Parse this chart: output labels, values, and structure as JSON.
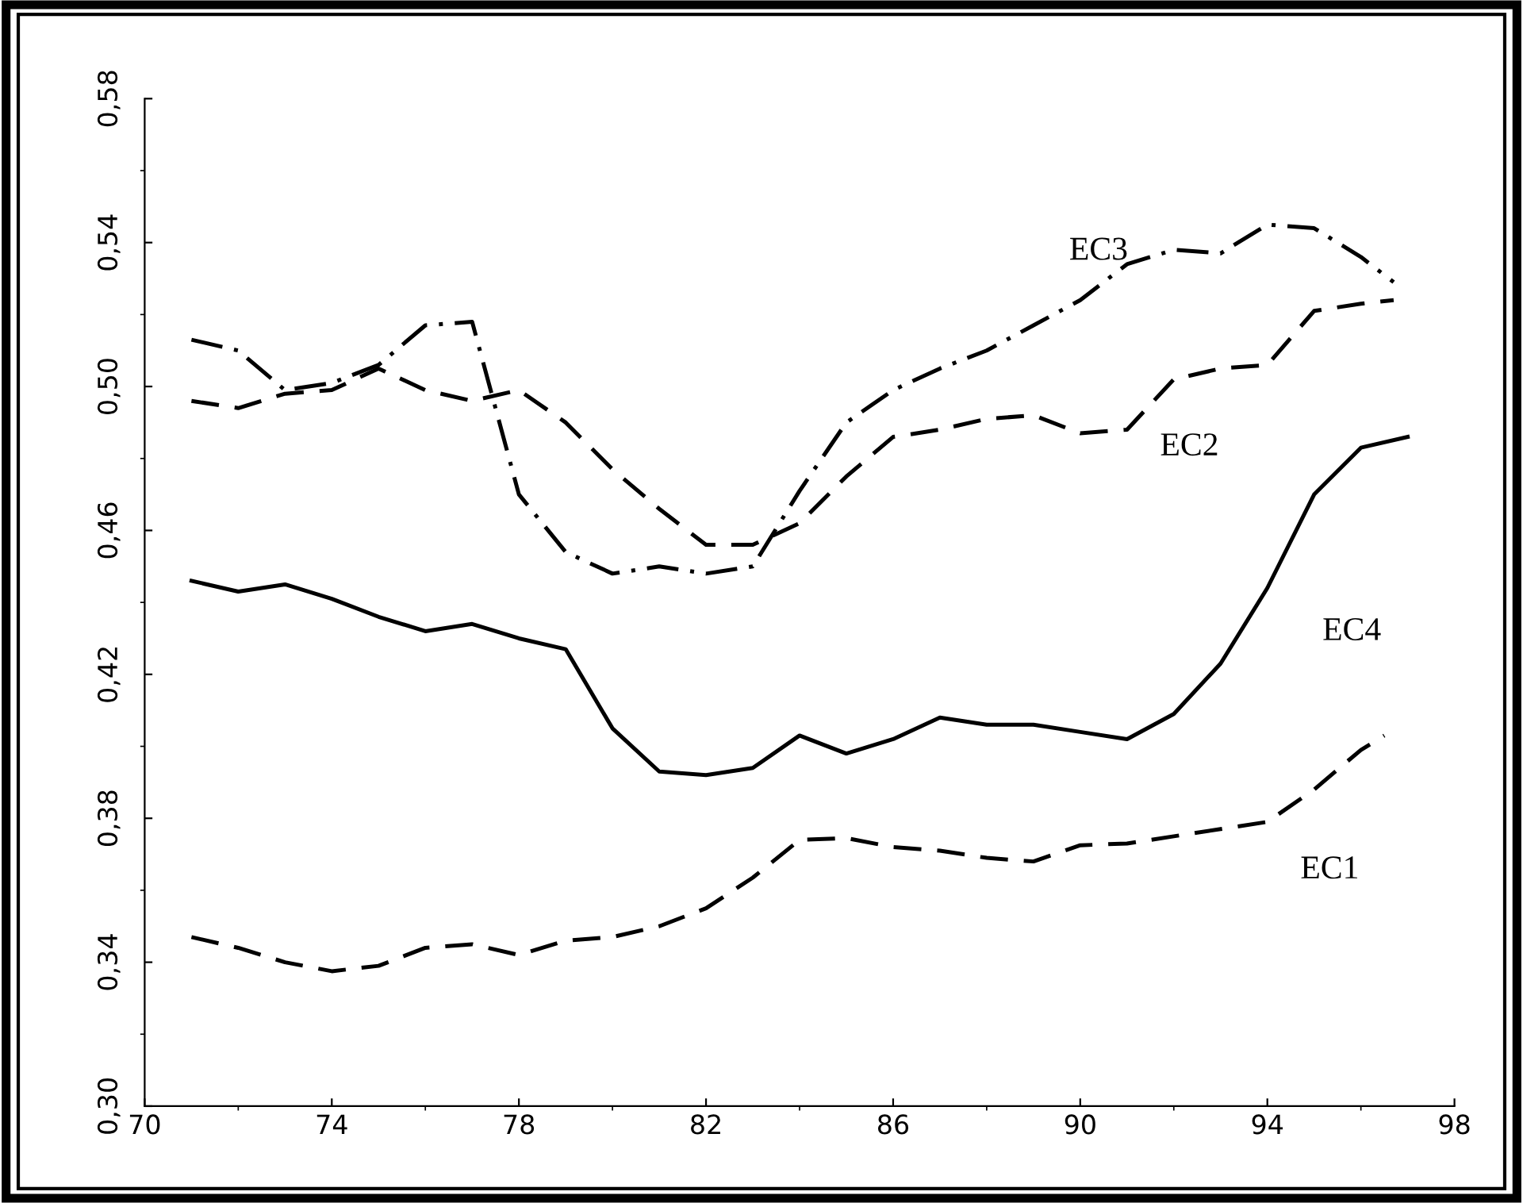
{
  "chart_data": {
    "type": "line",
    "xlim": [
      70,
      98
    ],
    "xticks": [
      70,
      74,
      78,
      82,
      86,
      90,
      94,
      98
    ],
    "ylim": [
      0.3,
      0.58
    ],
    "yticks": [
      {
        "value": 0.3,
        "label": "0,30"
      },
      {
        "value": 0.34,
        "label": "0,34"
      },
      {
        "value": 0.38,
        "label": "0,38"
      },
      {
        "value": 0.42,
        "label": "0,42"
      },
      {
        "value": 0.46,
        "label": "0,46"
      },
      {
        "value": 0.5,
        "label": "0,50"
      },
      {
        "value": 0.54,
        "label": "0,54"
      },
      {
        "value": 0.58,
        "label": "0,58"
      }
    ],
    "grid": false,
    "marker": "none",
    "series": [
      {
        "name": "EC1",
        "color": "#000000",
        "line_style": "dashed",
        "x": [
          71,
          72,
          73,
          74,
          75,
          76,
          77,
          78,
          79,
          80,
          81,
          82,
          83,
          84,
          85,
          86,
          87,
          88,
          89,
          90,
          91,
          92,
          93,
          94,
          95,
          96,
          96.5
        ],
        "values": [
          0.347,
          0.344,
          0.34,
          0.3375,
          0.339,
          0.344,
          0.345,
          0.342,
          0.346,
          0.347,
          0.35,
          0.355,
          0.3635,
          0.374,
          0.3745,
          0.372,
          0.371,
          0.369,
          0.368,
          0.3725,
          0.373,
          0.375,
          0.377,
          0.379,
          0.388,
          0.399,
          0.403
        ]
      },
      {
        "name": "EC2",
        "color": "#000000",
        "line_style": "dashed",
        "x": [
          71,
          72,
          73,
          74,
          75,
          76,
          77,
          78,
          79,
          80,
          81,
          82,
          83,
          84,
          85,
          86,
          87,
          88,
          89,
          90,
          91,
          92,
          93,
          94,
          95,
          96,
          96.7
        ],
        "values": [
          0.496,
          0.494,
          0.498,
          0.499,
          0.505,
          0.499,
          0.496,
          0.499,
          0.49,
          0.477,
          0.466,
          0.456,
          0.456,
          0.462,
          0.475,
          0.486,
          0.488,
          0.491,
          0.492,
          0.487,
          0.488,
          0.502,
          0.505,
          0.506,
          0.521,
          0.523,
          0.524
        ]
      },
      {
        "name": "EC3",
        "color": "#000000",
        "line_style": "dashdot",
        "x": [
          71,
          72,
          73,
          74,
          75,
          76,
          77,
          78,
          79,
          80,
          81,
          82,
          83,
          84,
          85,
          86,
          87,
          88,
          89,
          90,
          91,
          92,
          93,
          94,
          95,
          96,
          96.7
        ],
        "values": [
          0.513,
          0.51,
          0.499,
          0.501,
          0.506,
          0.517,
          0.518,
          0.47,
          0.454,
          0.448,
          0.45,
          0.448,
          0.45,
          0.471,
          0.49,
          0.499,
          0.505,
          0.51,
          0.517,
          0.524,
          0.534,
          0.538,
          0.537,
          0.545,
          0.544,
          0.536,
          0.529
        ]
      },
      {
        "name": "EC4",
        "color": "#000000",
        "line_style": "solid",
        "x": [
          71,
          72,
          73,
          74,
          75,
          76,
          77,
          78,
          79,
          80,
          81,
          82,
          83,
          84,
          85,
          86,
          87,
          88,
          89,
          90,
          91,
          92,
          93,
          94,
          95,
          96,
          97
        ],
        "values": [
          0.446,
          0.443,
          0.445,
          0.441,
          0.436,
          0.432,
          0.434,
          0.43,
          0.427,
          0.405,
          0.393,
          0.392,
          0.394,
          0.403,
          0.398,
          0.402,
          0.408,
          0.406,
          0.406,
          0.404,
          0.402,
          0.409,
          0.423,
          0.444,
          0.47,
          0.483,
          0.486
        ]
      }
    ]
  }
}
